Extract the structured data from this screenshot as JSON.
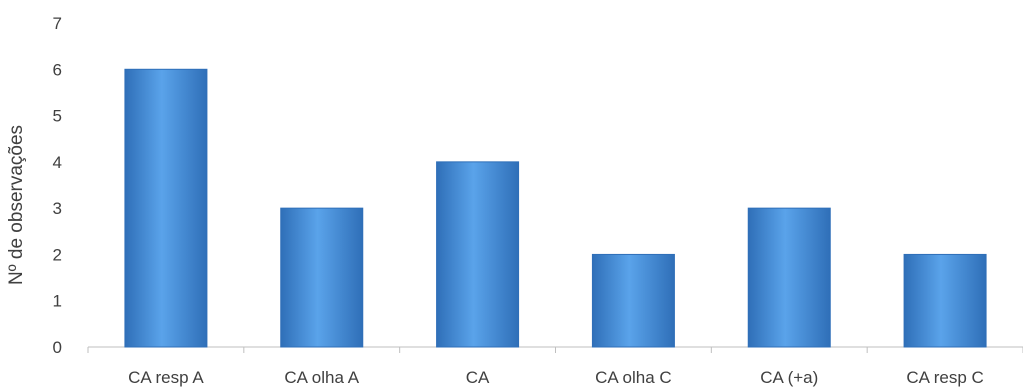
{
  "chart_data": {
    "type": "bar",
    "title": "",
    "xlabel": "",
    "ylabel": "Nº de observações",
    "categories": [
      "CA resp A",
      "CA olha A",
      "CA",
      "CA olha C",
      "CA (+a)",
      "CA resp C"
    ],
    "values": [
      6,
      3,
      4,
      2,
      3,
      2
    ],
    "ylim": [
      0,
      7
    ],
    "yticks": [
      0,
      1,
      2,
      3,
      4,
      5,
      6,
      7
    ],
    "grid": false,
    "legend": "none",
    "colors": {
      "bar": "#4a90d9",
      "bar_light": "#6fb0ee",
      "bar_dark": "#2f6fb8",
      "axis": "#bfbfbf",
      "text": "#404040"
    }
  }
}
